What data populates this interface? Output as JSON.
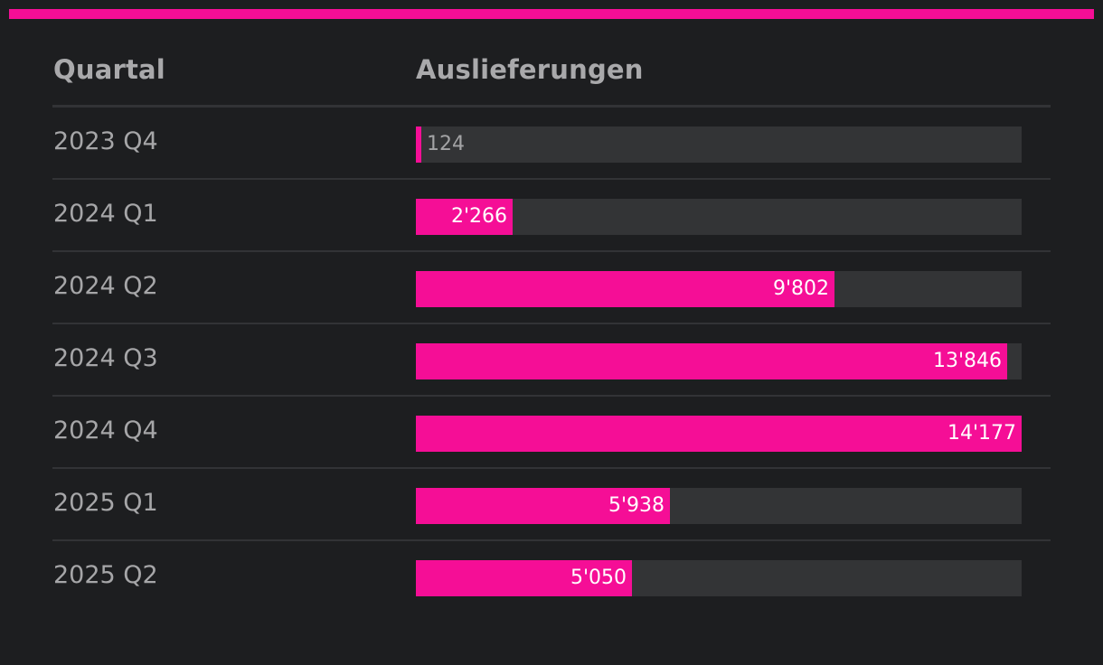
{
  "colors": {
    "accent": "#f50e96",
    "background": "#1d1e20",
    "track": "#333436"
  },
  "header": {
    "quartal_label": "Quartal",
    "value_label": "Auslieferungen"
  },
  "chart_data": {
    "type": "bar",
    "orientation": "horizontal",
    "categories": [
      "2023 Q4",
      "2024 Q1",
      "2024 Q2",
      "2024 Q3",
      "2024 Q4",
      "2025 Q1",
      "2025 Q2"
    ],
    "values": [
      124,
      2266,
      9802,
      13846,
      14177,
      5938,
      5050
    ],
    "value_labels": [
      "124",
      "2'266",
      "9'802",
      "13'846",
      "14'177",
      "5'938",
      "5'050"
    ],
    "xlim": [
      0,
      14177
    ],
    "grid": false,
    "legend": "none"
  }
}
